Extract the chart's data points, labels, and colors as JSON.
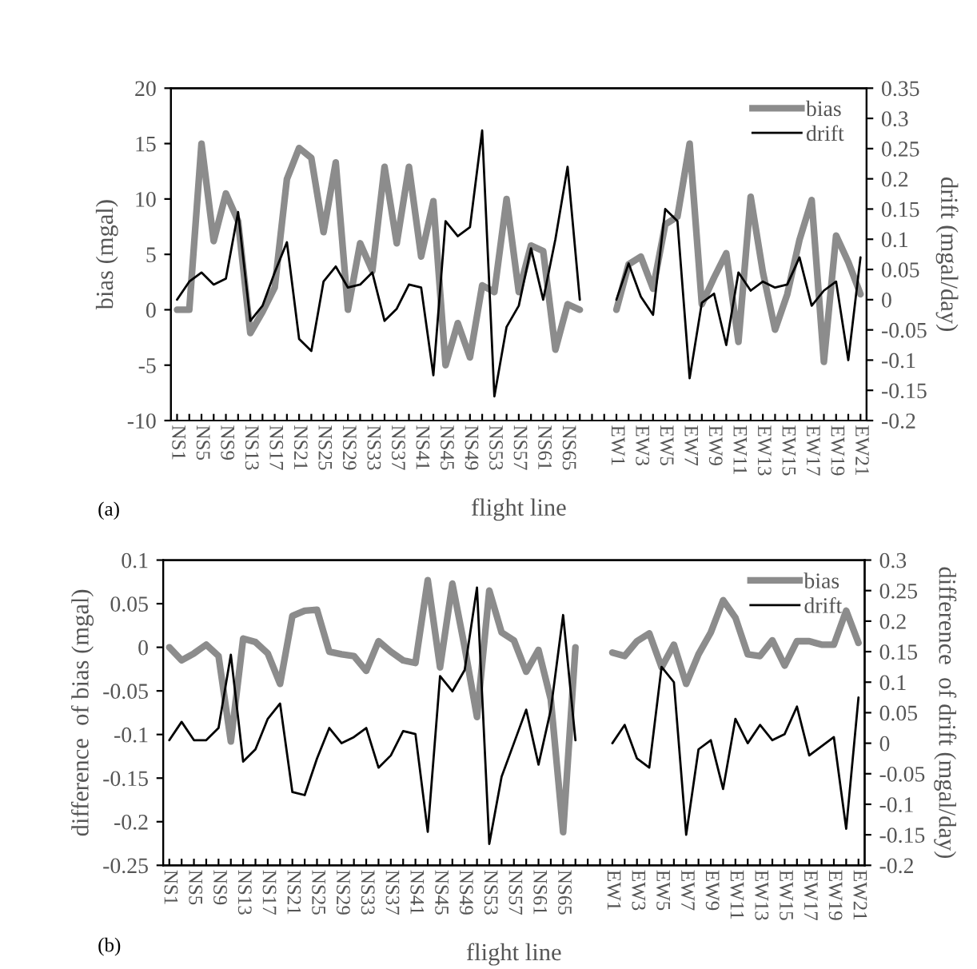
{
  "chart_data": [
    {
      "type": "line",
      "xlabel": "flight line",
      "ylabel": "bias (mgal)",
      "y2label": "drift (mgal/day)",
      "annotations": [
        "(a)"
      ],
      "categories": [
        "NS1",
        null,
        "NS5",
        null,
        "NS9",
        null,
        "NS13",
        null,
        "NS17",
        null,
        "NS21",
        null,
        "NS25",
        null,
        "NS29",
        null,
        "NS33",
        null,
        "NS37",
        null,
        "NS41",
        null,
        "NS45",
        null,
        "NS49",
        null,
        "NS53",
        null,
        "NS57",
        null,
        "NS61",
        null,
        "NS65",
        null,
        null,
        null,
        "EW1",
        null,
        "EW3",
        null,
        "EW5",
        null,
        "EW7",
        null,
        "EW9",
        null,
        "EW11",
        null,
        "EW13",
        null,
        "EW15",
        null,
        "EW17",
        null,
        "EW19",
        null,
        "EW21"
      ],
      "series": [
        {
          "name": "bias",
          "color": "#8c8c8c",
          "values": [
            0,
            0,
            15,
            6.2,
            10.5,
            8,
            -2.1,
            -0.2,
            2,
            11.8,
            14.6,
            13.7,
            7,
            13.3,
            0,
            6,
            3.5,
            12.9,
            6,
            12.9,
            4.8,
            9.8,
            -5,
            -1.2,
            -4.3,
            2.2,
            1.6,
            10,
            1.6,
            5.8,
            5.3,
            -3.6,
            0.5,
            0,
            null,
            null,
            0,
            4.1,
            4.8,
            1.9,
            7.7,
            8.4,
            15,
            0.5,
            2.9,
            5.1,
            -2.9,
            10.2,
            3.4,
            -1.8,
            1.4,
            6.3,
            9.9,
            -4.7,
            6.7,
            4.3,
            1.4
          ]
        },
        {
          "name": "drift",
          "color": "#000000",
          "axis": "y2",
          "values": [
            0,
            0.03,
            0.045,
            0.025,
            0.035,
            0.145,
            -0.035,
            -0.01,
            0.045,
            0.095,
            -0.065,
            -0.085,
            0.03,
            0.055,
            0.02,
            0.025,
            0.045,
            -0.035,
            -0.015,
            0.025,
            0.02,
            -0.125,
            0.13,
            0.105,
            0.12,
            0.28,
            -0.16,
            -0.045,
            -0.01,
            0.085,
            0,
            0.1,
            0.22,
            0,
            null,
            null,
            0,
            0.06,
            0.005,
            -0.025,
            0.15,
            0.13,
            -0.13,
            -0.005,
            0.01,
            -0.075,
            0.045,
            0.015,
            0.03,
            0.02,
            0.025,
            0.07,
            -0.01,
            0.015,
            0.03,
            -0.1,
            0.07
          ]
        }
      ],
      "ylim": [
        -10,
        20
      ],
      "yticks": [
        -10,
        -5,
        0,
        5,
        10,
        15,
        20
      ],
      "y2lim": [
        -0.2,
        0.35
      ],
      "y2ticks": [
        -0.2,
        -0.15,
        -0.1,
        -0.05,
        0,
        0.05,
        0.1,
        0.15,
        0.2,
        0.25,
        0.3,
        0.35
      ],
      "legend": "top right",
      "grid": false,
      "marker": "none",
      "line_style": "solid"
    },
    {
      "type": "line",
      "xlabel": "flight line",
      "ylabel": "difference  of bias (mgal)",
      "y2label": "difference  of drift (mgal/day)",
      "annotations": [
        "(b)"
      ],
      "categories": [
        "NS1",
        null,
        "NS5",
        null,
        "NS9",
        null,
        "NS13",
        null,
        "NS17",
        null,
        "NS21",
        null,
        "NS25",
        null,
        "NS29",
        null,
        "NS33",
        null,
        "NS37",
        null,
        "NS41",
        null,
        "NS45",
        null,
        "NS49",
        null,
        "NS53",
        null,
        "NS57",
        null,
        "NS61",
        null,
        "NS65",
        null,
        null,
        null,
        "EW1",
        null,
        "EW3",
        null,
        "EW5",
        null,
        "EW7",
        null,
        "EW9",
        null,
        "EW11",
        null,
        "EW13",
        null,
        "EW15",
        null,
        "EW17",
        null,
        "EW19",
        null,
        "EW21"
      ],
      "series": [
        {
          "name": "bias",
          "color": "#8c8c8c",
          "values": [
            0,
            -0.015,
            -0.007,
            0.003,
            -0.01,
            -0.108,
            0.01,
            0.006,
            -0.007,
            -0.042,
            0.036,
            0.042,
            0.043,
            -0.005,
            -0.008,
            -0.01,
            -0.027,
            0.007,
            -0.005,
            -0.015,
            -0.018,
            0.077,
            -0.023,
            0.073,
            0,
            -0.08,
            0.065,
            0.017,
            0.008,
            -0.028,
            -0.003,
            -0.06,
            -0.212,
            0,
            null,
            null,
            -0.006,
            -0.01,
            0.007,
            0.016,
            -0.023,
            0.003,
            -0.042,
            -0.008,
            0.017,
            0.054,
            0.034,
            -0.008,
            -0.01,
            0.008,
            -0.021,
            0.007,
            0.007,
            0.003,
            0.003,
            0.042,
            0.005
          ]
        },
        {
          "name": "drift",
          "color": "#000000",
          "axis": "y2",
          "values": [
            0.005,
            0.035,
            0.005,
            0.005,
            0.025,
            0.145,
            -0.03,
            -0.01,
            0.04,
            0.065,
            -0.08,
            -0.085,
            -0.025,
            0.025,
            0,
            0.01,
            0.025,
            -0.04,
            -0.02,
            0.02,
            0.015,
            -0.145,
            0.11,
            0.085,
            0.12,
            0.255,
            -0.165,
            -0.055,
            0,
            0.055,
            -0.035,
            0.055,
            0.21,
            0.005,
            null,
            null,
            0,
            0.03,
            -0.025,
            -0.04,
            0.125,
            0.1,
            -0.15,
            -0.01,
            0.005,
            -0.075,
            0.04,
            0,
            0.03,
            0.005,
            0.015,
            0.06,
            -0.02,
            -0.005,
            0.01,
            -0.14,
            0.075
          ]
        }
      ],
      "ylim": [
        -0.25,
        0.1
      ],
      "yticks": [
        -0.25,
        -0.2,
        -0.15,
        -0.1,
        -0.05,
        0,
        0.05,
        0.1
      ],
      "y2lim": [
        -0.2,
        0.3
      ],
      "y2ticks": [
        -0.2,
        -0.15,
        -0.1,
        -0.05,
        0,
        0.05,
        0.1,
        0.15,
        0.2,
        0.25,
        0.3
      ],
      "legend": "top right",
      "grid": false,
      "marker": "none",
      "line_style": "solid"
    }
  ]
}
